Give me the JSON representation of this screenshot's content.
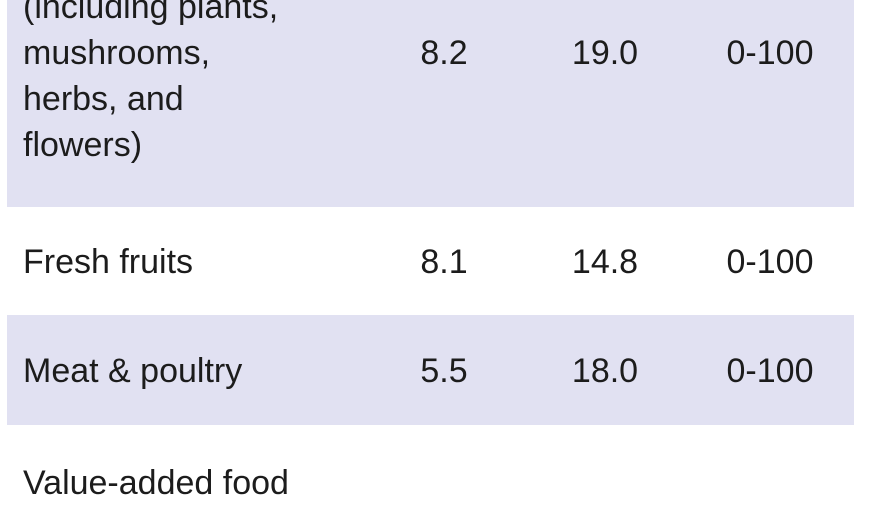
{
  "table": {
    "rows": [
      {
        "name_lines": [
          "(including plants,",
          "mushrooms,",
          "herbs, and",
          "flowers)"
        ],
        "col1": "8.2",
        "col2": "19.0",
        "col3": "0-100",
        "shaded": true
      },
      {
        "name_lines": [
          "Fresh fruits"
        ],
        "col1": "8.1",
        "col2": "14.8",
        "col3": "0-100",
        "shaded": false
      },
      {
        "name_lines": [
          "Meat & poultry"
        ],
        "col1": "5.5",
        "col2": "18.0",
        "col3": "0-100",
        "shaded": true
      },
      {
        "name_lines": [
          "Value-added food"
        ],
        "col1": "",
        "col2": "",
        "col3": "",
        "shaded": false
      }
    ]
  }
}
